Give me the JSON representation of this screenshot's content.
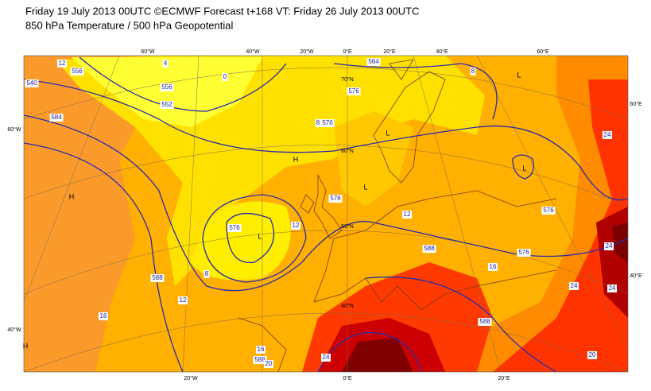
{
  "header": {
    "title_line1": "Friday 19 July 2013 00UTC ©ECMWF Forecast t+168 VT: Friday 26 July 2013 00UTC",
    "title_line2": "850 hPa Temperature / 500 hPa Geopotential"
  },
  "map": {
    "grid_labels": [
      "60°W",
      "40°W",
      "20°W",
      "0°E",
      "20°E",
      "40°E",
      "60°E",
      "60°E",
      "60°W",
      "40°W",
      "40°E",
      "20°W",
      "0°E",
      "20°E",
      "70°N",
      "60°N",
      "50°N",
      "40°N"
    ],
    "contour_labels": [
      "12",
      "556",
      "564",
      "576",
      "576",
      "576",
      "576",
      "576",
      "576",
      "588",
      "588",
      "588",
      "588",
      "12",
      "12",
      "12",
      "16",
      "16",
      "16",
      "20",
      "24",
      "24",
      "24",
      "24",
      "24",
      "20",
      "8",
      "8",
      "8",
      "4",
      "0",
      "552",
      "556",
      "584",
      "540"
    ],
    "centers": [
      "L",
      "L",
      "L",
      "H",
      "H",
      "L",
      "H",
      "L"
    ]
  }
}
